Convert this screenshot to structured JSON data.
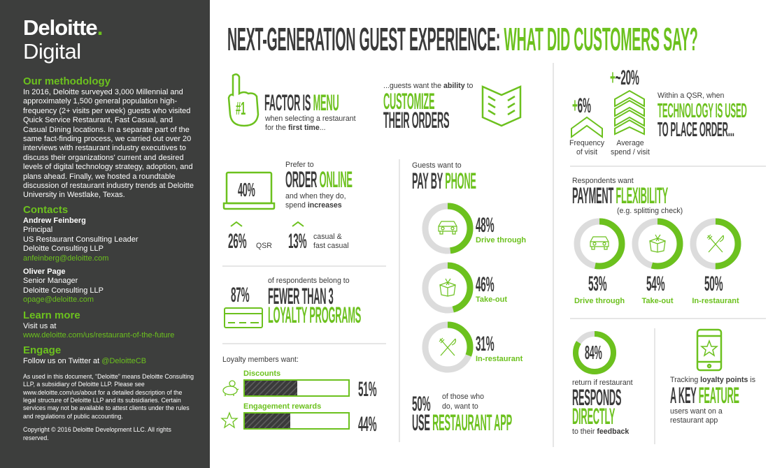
{
  "colors": {
    "accent": "#6cc11e",
    "dark": "#3a3a3a",
    "sidebar": "#3d3e3d",
    "track": "#dcdcdc"
  },
  "sidebar": {
    "logo": {
      "brand": "Deloitte",
      "dot": ".",
      "sub": "Digital"
    },
    "methodology": {
      "heading": "Our methodology",
      "text": "In 2016, Deloitte surveyed 3,000 Millennial and approximately 1,500 general population high-frequency (2+ visits per week) guests who visited Quick Service Restaurant, Fast Casual, and Casual Dining locations. In a separate part of the same fact-finding process, we carried out over 20 interviews with restaurant industry executives to discuss their organizations' current and desired levels of digital technology strategy, adoption, and plans ahead. Finally, we hosted a roundtable discussion of restaurant industry trends at Deloitte University in Westlake, Texas."
    },
    "contacts": {
      "heading": "Contacts",
      "people": [
        {
          "name": "Andrew Feinberg",
          "title": "Principal",
          "role": "US Restaurant Consulting Leader",
          "org": "Deloitte Consulting LLP",
          "email": "anfeinberg@deloitte.com"
        },
        {
          "name": "Oliver Page",
          "title": "Senior Manager",
          "org": "Deloitte Consulting LLP",
          "email": "opage@deloitte.com"
        }
      ]
    },
    "learn": {
      "heading": "Learn more",
      "text": "Visit us at",
      "link": "www.deloitte.com/us/restaurant-of-the-future"
    },
    "engage": {
      "heading": "Engage",
      "text": "Follow us on Twitter at ",
      "handle": "@DeloitteCB"
    },
    "disclaimer": "As used in this document, “Deloitte” means Deloitte Consulting LLP, a subsidiary of Deloitte LLP. Please see www.deloitte.com/us/about for a detailed description of the legal structure of Deloitte LLP and its subsidiaries. Certain services may not be available to attest clients under the rules and regulations of public accounting.",
    "copyright": "Copyright © 2016 Deloitte Development LLC. All rights reserved."
  },
  "title": {
    "dark": "NEXT-GENERATION GUEST EXPERIENCE: ",
    "green": "WHAT DID CUSTOMERS SAY?"
  },
  "menu": {
    "badge": "#1",
    "dark": "FACTOR IS ",
    "green": "MENU",
    "sub1": "when selecting a restaurant",
    "sub2a": "for the ",
    "sub2b": "first time",
    "sub2c": "..."
  },
  "customize": {
    "pre1": "...guests want the ",
    "pre2": "ability",
    "pre3": " to",
    "green": "CUSTOMIZE",
    "dark": "THEIR ORDERS"
  },
  "tech": {
    "freq_value": "6%",
    "freq_sign": "+",
    "freq_label1": "Frequency",
    "freq_label2": "of visit",
    "spend_sign": "+",
    "spend_value": "~20%",
    "spend_label1": "Average",
    "spend_label2": "spend / visit",
    "pre": "Within a QSR, when",
    "green": "TECHNOLOGY IS USED",
    "dark": "TO PLACE ORDER..."
  },
  "online": {
    "value": "40%",
    "pre": "Prefer to",
    "dark": "ORDER ",
    "green": "ONLINE",
    "sub1": "and when they do,",
    "sub2a": "spend ",
    "sub2b": "increases",
    "qsr_value": "26%",
    "qsr_label": "QSR",
    "casual_value": "13%",
    "casual_label1": "casual &",
    "casual_label2": "fast casual"
  },
  "loyalty": {
    "value": "87%",
    "pre": "of respondents belong to",
    "dark": "FEWER THAN 3",
    "green": "LOYALTY PROGRAMS"
  },
  "members": {
    "heading": "Loyalty members want:",
    "items": [
      {
        "label": "Discounts",
        "value": "51%",
        "pct": 51,
        "icon": "piggy-bank-icon"
      },
      {
        "label": "Engagement rewards",
        "value": "44%",
        "pct": 44,
        "icon": "star-icon"
      }
    ]
  },
  "phone": {
    "pre": "Guests want to",
    "dark": "PAY BY ",
    "green": "PHONE",
    "items": [
      {
        "value": "48%",
        "pct": 48,
        "label": "Drive through",
        "icon": "car-icon"
      },
      {
        "value": "46%",
        "pct": 46,
        "label": "Take-out",
        "icon": "takeout-box-icon"
      },
      {
        "value": "31%",
        "pct": 31,
        "label": "In-restaurant",
        "icon": "fork-knife-icon"
      }
    ],
    "app_value": "50%",
    "app_pre1": "of those who",
    "app_pre2": "do, want to",
    "app_dark": "USE ",
    "app_green": "RESTAURANT APP"
  },
  "payment": {
    "pre": "Respondents want",
    "dark": "PAYMENT ",
    "green": "FLEXIBILITY",
    "note": "(e.g. splitting check)",
    "items": [
      {
        "value": "53%",
        "pct": 53,
        "label": "Drive through",
        "icon": "car-icon"
      },
      {
        "value": "54%",
        "pct": 54,
        "label": "Take-out",
        "icon": "takeout-box-icon"
      },
      {
        "value": "50%",
        "pct": 50,
        "label": "In-restaurant",
        "icon": "fork-knife-icon"
      }
    ]
  },
  "responds": {
    "value": "84%",
    "pct": 84,
    "pre": "return if restaurant",
    "dark": "RESPONDS",
    "green": "DIRECTLY",
    "post1": "to their ",
    "post2": "feedback"
  },
  "feature": {
    "pre1": "Tracking ",
    "pre2": "loyalty points",
    "pre3": " is",
    "dark": "A KEY ",
    "green": "FEATURE",
    "post1": "users want on a",
    "post2": "restaurant app"
  }
}
